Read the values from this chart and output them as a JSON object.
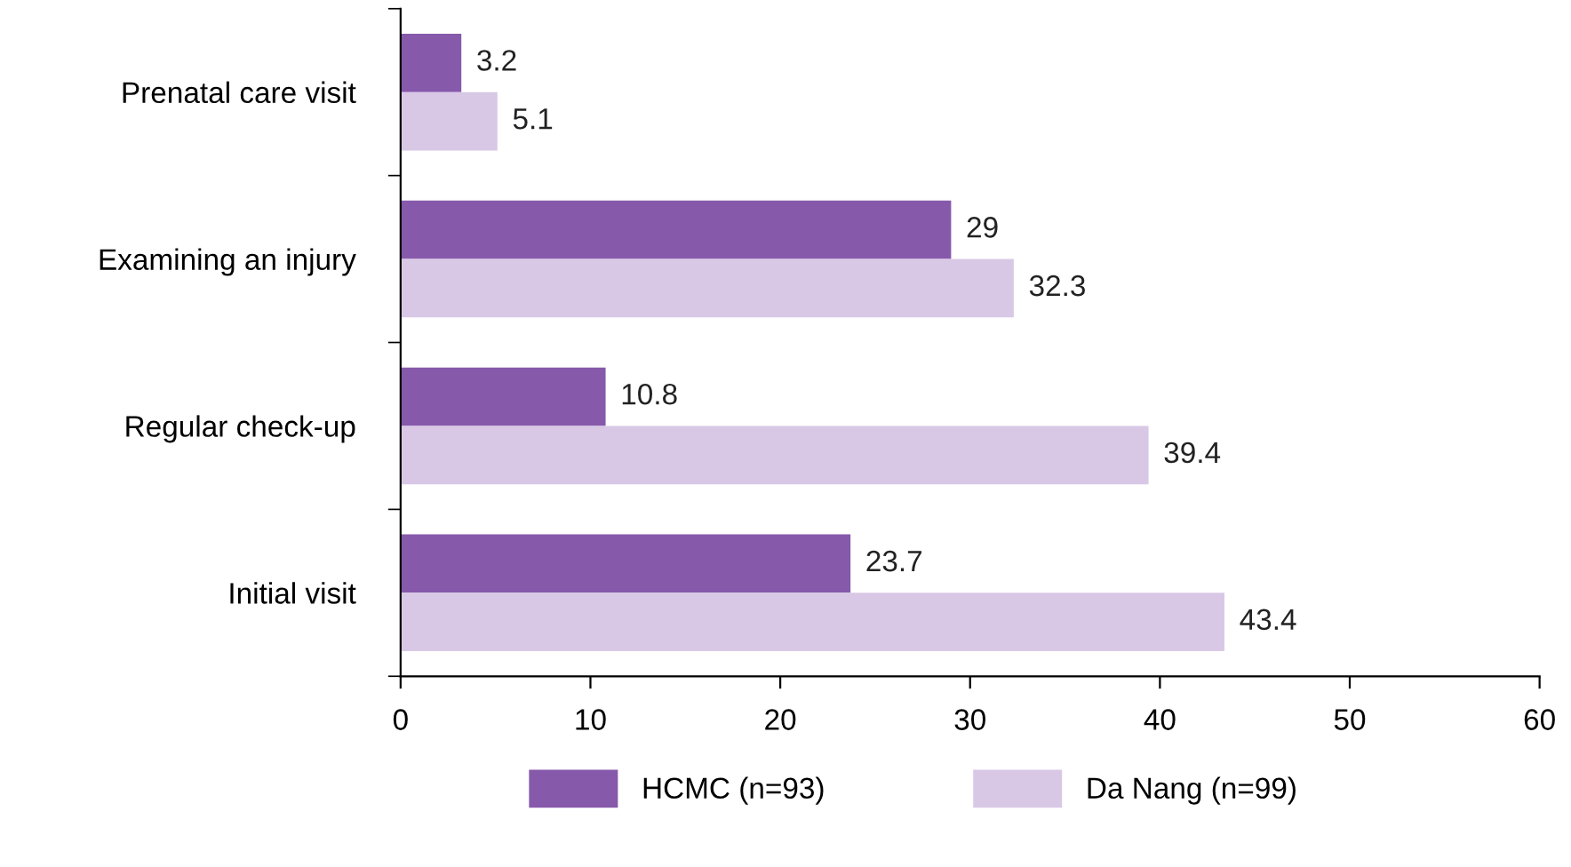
{
  "chart_data": {
    "type": "bar",
    "orientation": "horizontal",
    "categories": [
      "Prenatal care visit",
      "Examining an injury",
      "Regular check-up",
      "Initial visit"
    ],
    "series": [
      {
        "name": "HCMC (n=93)",
        "color": "#8659ab",
        "values": [
          3.2,
          29,
          10.8,
          23.7
        ]
      },
      {
        "name": "Da Nang (n=99)",
        "color": "#d8c8e5",
        "values": [
          5.1,
          32.3,
          39.4,
          43.4
        ]
      }
    ],
    "xlim": [
      0,
      60
    ],
    "xticks": [
      0,
      10,
      20,
      30,
      40,
      50,
      60
    ],
    "data_labels": true,
    "grid": false,
    "legend": "bottom"
  }
}
